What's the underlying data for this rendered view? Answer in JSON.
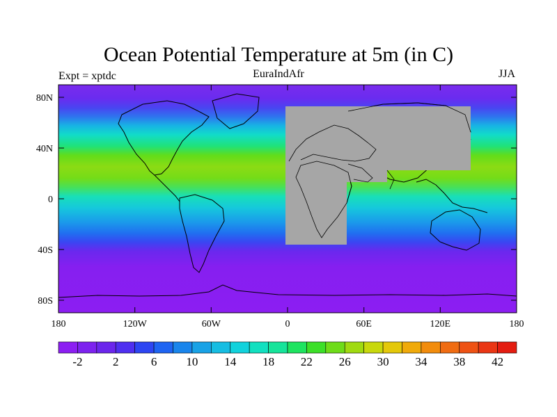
{
  "title": "Ocean Potential Temperature at 5m (in C)",
  "left_label": "Expt = xptdc",
  "center_label": "EuraIndAfr",
  "right_label": "JJA",
  "map": {
    "lat_ticks": [
      "80N",
      "40N",
      "0",
      "40S",
      "80S"
    ],
    "lon_ticks": [
      "180",
      "120W",
      "60W",
      "0",
      "60E",
      "120E",
      "180"
    ],
    "masked_region_color": "#a6a6a6",
    "coastline_color": "#000000"
  },
  "colorbar": {
    "labels": [
      "-2",
      "2",
      "6",
      "10",
      "14",
      "18",
      "22",
      "26",
      "30",
      "34",
      "38",
      "42"
    ],
    "colors": [
      "#8c1ef2",
      "#7d22ef",
      "#6b26ec",
      "#4f2ff0",
      "#2d45f2",
      "#1e64f2",
      "#1985ec",
      "#18a2e6",
      "#16bde2",
      "#11d2dc",
      "#12e0c0",
      "#16e49a",
      "#1ee460",
      "#3cdf28",
      "#6edc18",
      "#a0da10",
      "#c8d80c",
      "#e4c80a",
      "#f0aa0a",
      "#f28c0c",
      "#f06c12",
      "#ee5214",
      "#ea3614",
      "#e41c10"
    ]
  }
}
